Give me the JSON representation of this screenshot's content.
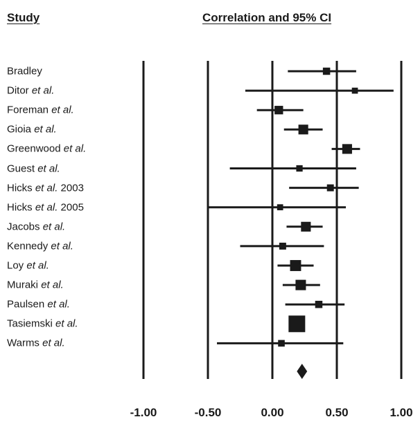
{
  "header": {
    "study_label": "Study",
    "ci_label": "Correlation and 95% CI"
  },
  "chart_data": {
    "type": "forest",
    "title": "Correlation and 95% CI",
    "xlim": [
      -1.0,
      1.0
    ],
    "xticks": [
      -1.0,
      -0.5,
      0.0,
      0.5,
      1.0
    ],
    "xtick_labels": [
      "-1.00",
      "-0.50",
      "0.00",
      "0.50",
      "1.00"
    ],
    "vertical_lines_at": [
      -1.0,
      -0.5,
      0.0,
      0.5,
      1.0
    ],
    "studies": [
      {
        "name": "Bradley",
        "suffix": "",
        "estimate": 0.42,
        "lower": 0.12,
        "upper": 0.65,
        "weight": 0.25
      },
      {
        "name": "Ditor",
        "suffix": "et al.",
        "estimate": 0.64,
        "lower": -0.21,
        "upper": 0.94,
        "weight": 0.15
      },
      {
        "name": "Foreman",
        "suffix": "et al.",
        "estimate": 0.05,
        "lower": -0.12,
        "upper": 0.24,
        "weight": 0.35
      },
      {
        "name": "Gioia",
        "suffix": "et al.",
        "estimate": 0.24,
        "lower": 0.09,
        "upper": 0.39,
        "weight": 0.45
      },
      {
        "name": "Greenwood",
        "suffix": "et al.",
        "estimate": 0.58,
        "lower": 0.46,
        "upper": 0.68,
        "weight": 0.45
      },
      {
        "name": "Guest",
        "suffix": "et al.",
        "estimate": 0.21,
        "lower": -0.33,
        "upper": 0.65,
        "weight": 0.18
      },
      {
        "name": "Hicks",
        "suffix": "et al. 2003",
        "estimate": 0.45,
        "lower": 0.13,
        "upper": 0.67,
        "weight": 0.22
      },
      {
        "name": "Hicks",
        "suffix": "et al. 2005",
        "estimate": 0.06,
        "lower": -0.5,
        "upper": 0.57,
        "weight": 0.15
      },
      {
        "name": "Jacobs",
        "suffix": "et al.",
        "estimate": 0.26,
        "lower": 0.11,
        "upper": 0.39,
        "weight": 0.45
      },
      {
        "name": "Kennedy",
        "suffix": "et al.",
        "estimate": 0.08,
        "lower": -0.25,
        "upper": 0.4,
        "weight": 0.22
      },
      {
        "name": "Loy",
        "suffix": "et al.",
        "estimate": 0.18,
        "lower": 0.04,
        "upper": 0.32,
        "weight": 0.55
      },
      {
        "name": "Muraki",
        "suffix": "et al.",
        "estimate": 0.22,
        "lower": 0.08,
        "upper": 0.37,
        "weight": 0.5
      },
      {
        "name": "Paulsen",
        "suffix": "et al.",
        "estimate": 0.36,
        "lower": 0.1,
        "upper": 0.56,
        "weight": 0.25
      },
      {
        "name": "Tasiemski",
        "suffix": "et al.",
        "estimate": 0.19,
        "lower": 0.15,
        "upper": 0.23,
        "weight": 1.0
      },
      {
        "name": "Warms",
        "suffix": "et al.",
        "estimate": 0.07,
        "lower": -0.43,
        "upper": 0.55,
        "weight": 0.2
      }
    ],
    "summary": {
      "estimate": 0.23,
      "lower": 0.19,
      "upper": 0.27
    },
    "colors": {
      "line": "#1a1a1a",
      "marker": "#1a1a1a"
    }
  }
}
